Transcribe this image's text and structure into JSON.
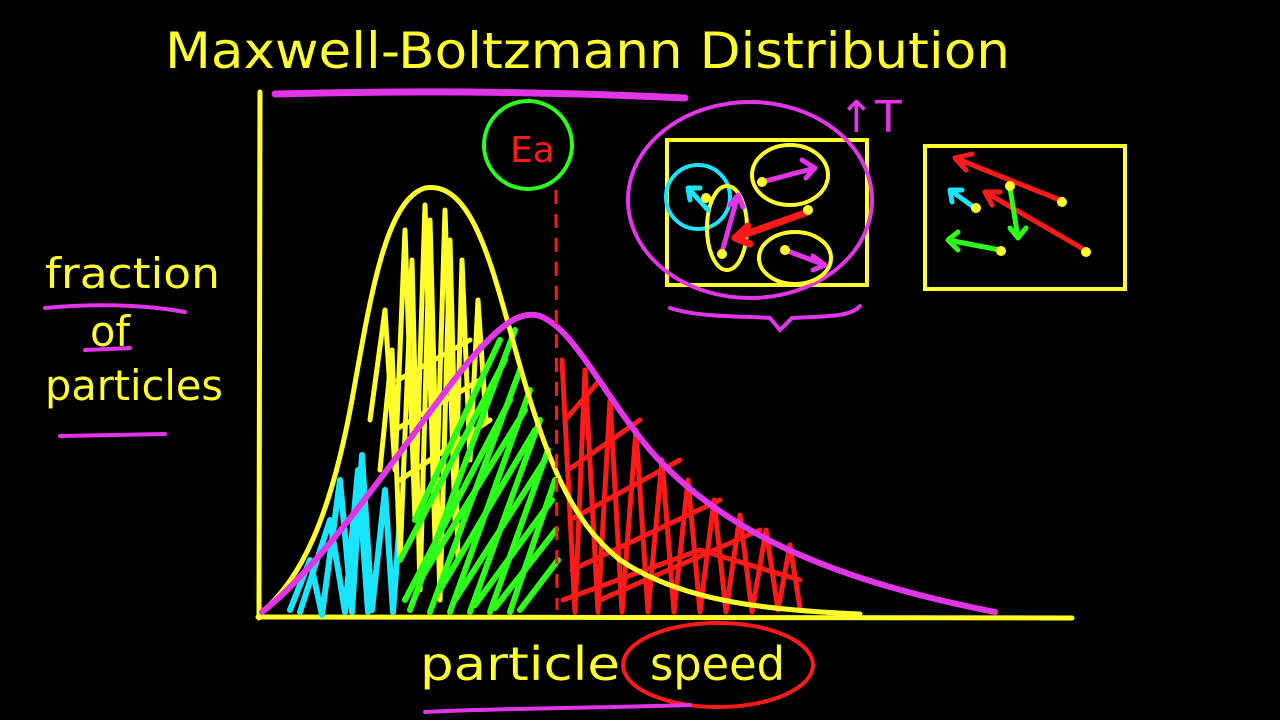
{
  "title": "Maxwell-Boltzmann Distribution",
  "y_axis_label": [
    "fraction",
    "of",
    "particles"
  ],
  "x_axis_label": {
    "word1": "particle",
    "word2": "speed"
  },
  "activation_energy_label": "Ea",
  "temperature_label": "↑T",
  "colors": {
    "yellow": "#ffff2b",
    "magenta": "#e234e8",
    "green": "#2bff1a",
    "cyan": "#19e5ff",
    "red": "#ff1a1a",
    "background": "#000000"
  }
}
